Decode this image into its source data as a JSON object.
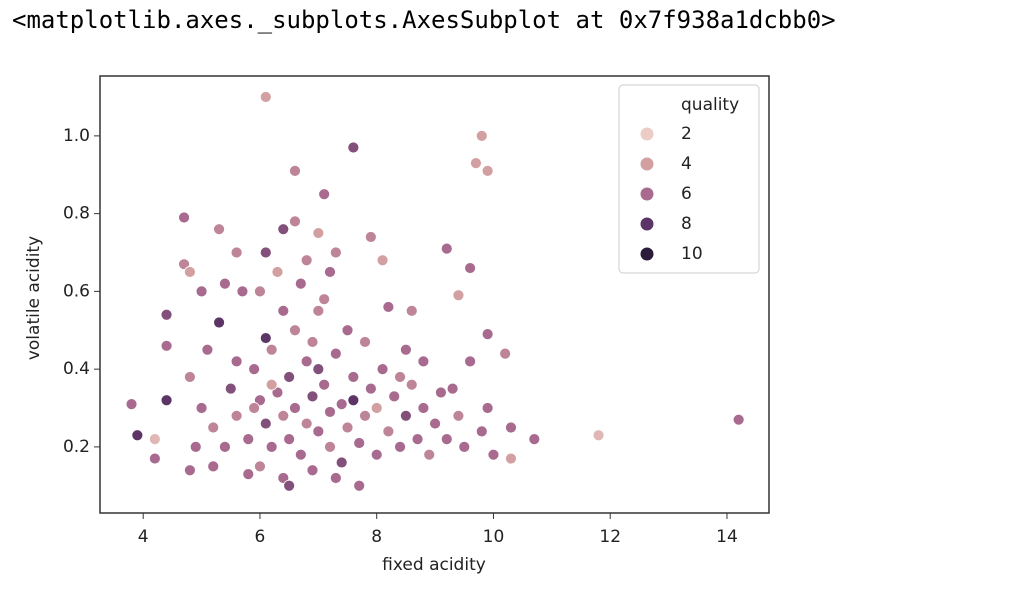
{
  "output_text": "<matplotlib.axes._subplots.AxesSubplot at 0x7f938a1dcbb0>",
  "chart_data": {
    "type": "scatter",
    "xlabel": "fixed acidity",
    "ylabel": "volatile acidity",
    "xlim": [
      3.26,
      14.72
    ],
    "ylim": [
      0.03,
      1.154
    ],
    "xticks": [
      4,
      6,
      8,
      10,
      12,
      14
    ],
    "yticks": [
      0.2,
      0.4,
      0.6,
      0.8,
      {
        "value": 1.0,
        "label": "1.0"
      }
    ],
    "legend": {
      "title": "quality",
      "position": "upper right",
      "entries": [
        {
          "value": 2,
          "color": "#ebcdc6"
        },
        {
          "value": 4,
          "color": "#d3a0a2"
        },
        {
          "value": 6,
          "color": "#a86a8e"
        },
        {
          "value": 8,
          "color": "#5c3566"
        },
        {
          "value": 10,
          "color": "#2b1c3b"
        }
      ]
    },
    "x": [
      3.8,
      3.9,
      4.2,
      4.2,
      4.4,
      4.4,
      4.4,
      4.7,
      4.7,
      4.8,
      6.1,
      6.6,
      7.1,
      7.6,
      9.8,
      9.7,
      9.9,
      9.2,
      9.6,
      11.8,
      10.3,
      14.2,
      10.7,
      10.2,
      9.9,
      7.0,
      7.3,
      7.9,
      8.1,
      6.4,
      5.3,
      5.6,
      6.1,
      6.6,
      8.6,
      9.3,
      9.4,
      5.0,
      5.2,
      5.4,
      5.5,
      5.6,
      5.8,
      5.9,
      6.0,
      6.0,
      6.1,
      6.2,
      6.2,
      6.3,
      6.4,
      6.4,
      6.5,
      6.5,
      6.6,
      6.6,
      6.7,
      6.8,
      6.8,
      6.9,
      6.9,
      7.0,
      7.0,
      7.1,
      7.2,
      7.2,
      7.3,
      7.4,
      7.4,
      7.5,
      7.6,
      7.7,
      7.8,
      7.9,
      8.0,
      8.0,
      8.1,
      8.2,
      8.3,
      8.4,
      8.5,
      8.6,
      8.7,
      8.8,
      8.9,
      9.0,
      9.1,
      9.2,
      9.4,
      9.5,
      9.8,
      9.9,
      5.1,
      5.3,
      5.7,
      5.8,
      6.0,
      6.3,
      6.7,
      7.1,
      7.5,
      7.8,
      8.2,
      8.5,
      4.9,
      4.8,
      5.2,
      5.6,
      6.1,
      6.4,
      6.9,
      7.3,
      7.7,
      6.5,
      6.2,
      5.9,
      7.0,
      7.6,
      8.4,
      8.8,
      9.6,
      10.0,
      10.3,
      4.8,
      5.0,
      5.4,
      6.8,
      7.2
    ],
    "y": [
      0.31,
      0.23,
      0.22,
      0.17,
      0.32,
      0.54,
      0.46,
      0.79,
      0.67,
      0.65,
      1.1,
      0.91,
      0.85,
      0.97,
      1.0,
      0.93,
      0.91,
      0.71,
      0.66,
      0.23,
      0.17,
      0.27,
      0.22,
      0.44,
      0.49,
      0.75,
      0.7,
      0.74,
      0.68,
      0.76,
      0.76,
      0.7,
      0.7,
      0.78,
      0.55,
      0.35,
      0.59,
      0.3,
      0.25,
      0.2,
      0.35,
      0.28,
      0.22,
      0.4,
      0.15,
      0.32,
      0.26,
      0.45,
      0.2,
      0.34,
      0.12,
      0.28,
      0.38,
      0.22,
      0.5,
      0.3,
      0.18,
      0.42,
      0.26,
      0.33,
      0.14,
      0.24,
      0.55,
      0.36,
      0.2,
      0.29,
      0.44,
      0.16,
      0.31,
      0.25,
      0.38,
      0.21,
      0.28,
      0.35,
      0.18,
      0.3,
      0.4,
      0.24,
      0.33,
      0.2,
      0.28,
      0.36,
      0.22,
      0.3,
      0.18,
      0.26,
      0.34,
      0.22,
      0.28,
      0.2,
      0.24,
      0.3,
      0.45,
      0.52,
      0.6,
      0.13,
      0.6,
      0.65,
      0.62,
      0.58,
      0.5,
      0.47,
      0.56,
      0.45,
      0.2,
      0.38,
      0.15,
      0.42,
      0.48,
      0.55,
      0.47,
      0.12,
      0.1,
      0.1,
      0.36,
      0.3,
      0.4,
      0.32,
      0.38,
      0.42,
      0.42,
      0.18,
      0.25,
      0.14,
      0.6,
      0.62,
      0.68,
      0.65
    ],
    "hue": [
      6,
      8,
      3,
      6,
      8,
      7,
      6,
      6,
      5,
      4,
      4,
      5,
      6,
      7,
      4,
      4,
      4,
      6,
      6,
      3,
      4,
      6,
      6,
      5,
      6,
      4,
      5,
      5,
      4,
      7,
      5,
      5,
      7,
      5,
      5,
      6,
      4,
      6,
      5,
      6,
      7,
      5,
      6,
      6,
      5,
      6,
      7,
      5,
      6,
      6,
      6,
      5,
      7,
      6,
      5,
      6,
      6,
      6,
      5,
      7,
      6,
      6,
      5,
      6,
      5,
      6,
      6,
      7,
      6,
      5,
      6,
      6,
      5,
      6,
      6,
      4,
      6,
      5,
      6,
      6,
      7,
      5,
      6,
      6,
      5,
      6,
      6,
      6,
      5,
      6,
      6,
      6,
      6,
      8,
      6,
      6,
      5,
      4,
      6,
      5,
      6,
      5,
      6,
      6,
      6,
      5,
      6,
      6,
      8,
      6,
      5,
      6,
      6,
      7,
      4,
      5,
      7,
      8,
      5,
      6,
      6,
      6,
      6,
      6,
      6,
      6,
      5,
      6
    ]
  }
}
